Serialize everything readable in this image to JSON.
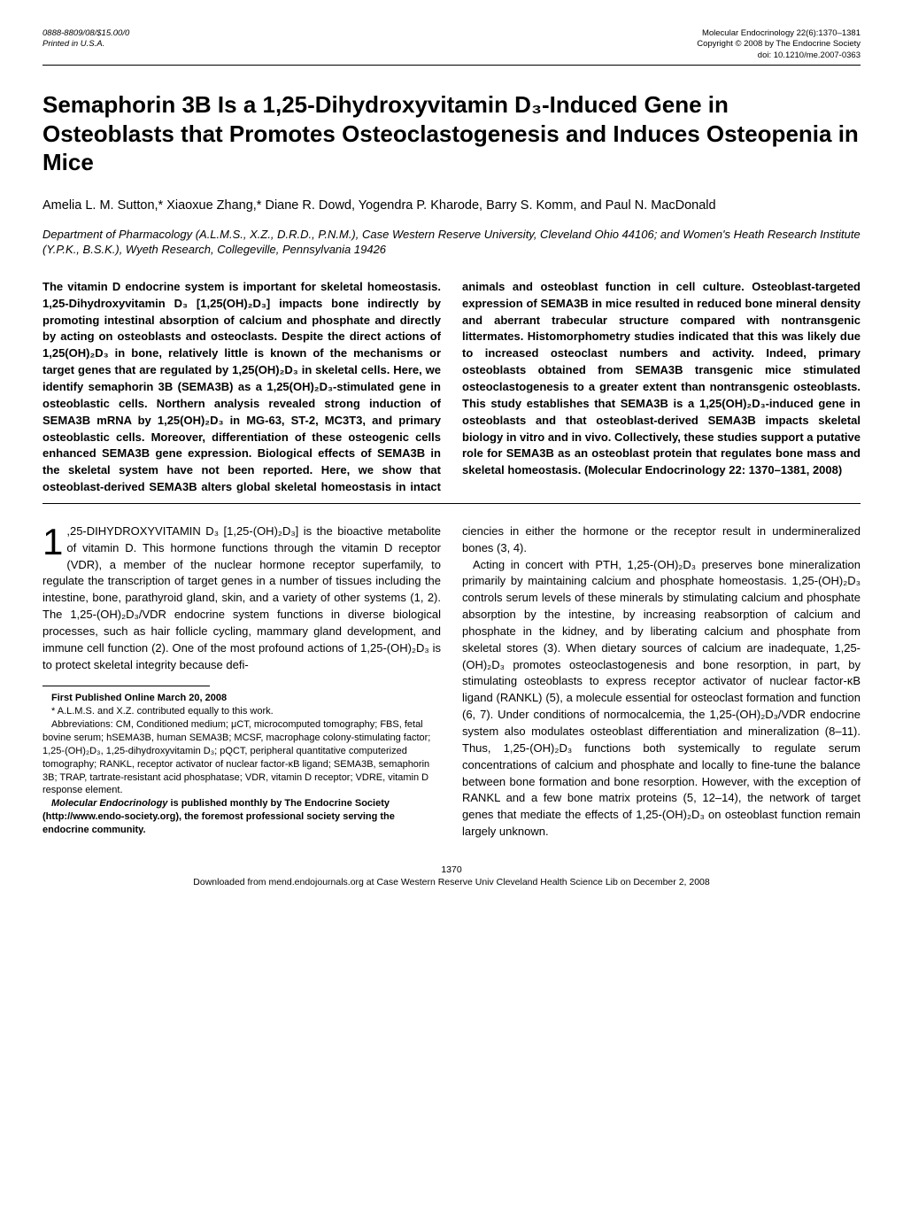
{
  "header": {
    "left_line1": "0888-8809/08/$15.00/0",
    "left_line2": "Printed in U.S.A.",
    "right_line1": "Molecular Endocrinology 22(6):1370–1381",
    "right_line2": "Copyright © 2008 by The Endocrine Society",
    "right_line3": "doi: 10.1210/me.2007-0363"
  },
  "title": "Semaphorin 3B Is a 1,25-Dihydroxyvitamin D₃-Induced Gene in Osteoblasts that Promotes Osteoclastogenesis and Induces Osteopenia in Mice",
  "authors": "Amelia L. M. Sutton,* Xiaoxue Zhang,* Diane R. Dowd, Yogendra P. Kharode, Barry S. Komm, and Paul N. MacDonald",
  "affiliation": "Department of Pharmacology (A.L.M.S., X.Z., D.R.D., P.N.M.), Case Western Reserve University, Cleveland Ohio 44106; and Women's Heath Research Institute (Y.P.K., B.S.K.), Wyeth Research, Collegeville, Pennsylvania 19426",
  "abstract_left": "The vitamin D endocrine system is important for skeletal homeostasis. 1,25-Dihydroxyvitamin D₃ [1,25(OH)₂D₃] impacts bone indirectly by promoting intestinal absorption of calcium and phosphate and directly by acting on osteoblasts and osteoclasts. Despite the direct actions of 1,25(OH)₂D₃ in bone, relatively little is known of the mechanisms or target genes that are regulated by 1,25(OH)₂D₃ in skeletal cells. Here, we identify semaphorin 3B (SEMA3B) as a 1,25(OH)₂D₃-stimulated gene in osteoblastic cells. Northern analysis revealed strong induction of SEMA3B mRNA by 1,25(OH)₂D₃ in MG-63, ST-2, MC3T3, and primary osteoblastic cells. Moreover, differentiation of these osteogenic cells enhanced SEMA3B gene expression. Biological effects of SEMA3B in the skeletal system have not been reported. Here, we show that osteoblast-derived SEMA3B alters",
  "abstract_right": "global skeletal homeostasis in intact animals and osteoblast function in cell culture. Osteoblast-targeted expression of SEMA3B in mice resulted in reduced bone mineral density and aberrant trabecular structure compared with nontransgenic littermates. Histomorphometry studies indicated that this was likely due to increased osteoclast numbers and activity. Indeed, primary osteoblasts obtained from SEMA3B transgenic mice stimulated osteoclastogenesis to a greater extent than nontransgenic osteoblasts. This study establishes that SEMA3B is a 1,25(OH)₂D₃-induced gene in osteoblasts and that osteoblast-derived SEMA3B impacts skeletal biology in vitro and in vivo. Collectively, these studies support a putative role for SEMA3B as an osteoblast protein that regulates bone mass and skeletal homeostasis. (Molecular Endocrinology 22: 1370–1381, 2008)",
  "body": {
    "drop": "1",
    "p1": ",25-DIHYDROXYVITAMIN D₃ [1,25-(OH)₂D₃] is the bioactive metabolite of vitamin D. This hormone functions through the vitamin D receptor (VDR), a member of the nuclear hormone receptor superfamily, to regulate the transcription of target genes in a number of tissues including the intestine, bone, parathyroid gland, skin, and a variety of other systems (1, 2). The 1,25-(OH)₂D₃/VDR endocrine system functions in diverse biological processes, such as hair follicle cycling, mammary gland development, and immune cell function (2). One of the most profound actions of 1,25-(OH)₂D₃ is to protect skeletal integrity because defi-",
    "p2a": "ciencies in either the hormone or the receptor result in undermineralized bones (3, 4).",
    "p2b": "Acting in concert with PTH, 1,25-(OH)₂D₃ preserves bone mineralization primarily by maintaining calcium and phosphate homeostasis. 1,25-(OH)₂D₃ controls serum levels of these minerals by stimulating calcium and phosphate absorption by the intestine, by increasing reabsorption of calcium and phosphate in the kidney, and by liberating calcium and phosphate from skeletal stores (3). When dietary sources of calcium are inadequate, 1,25-(OH)₂D₃ promotes osteoclastogenesis and bone resorption, in part, by stimulating osteoblasts to express receptor activator of nuclear factor-κB ligand (RANKL) (5), a molecule essential for osteoclast formation and function (6, 7). Under conditions of normocalcemia, the 1,25-(OH)₂D₃/VDR endocrine system also modulates osteoblast differentiation and mineralization (8–11). Thus, 1,25-(OH)₂D₃ functions both systemically to regulate serum concentrations of calcium and phosphate and locally to fine-tune the balance between bone formation and bone resorption. However, with the exception of RANKL and a few bone matrix proteins (5, 12–14), the network of target genes that mediate the effects of 1,25-(OH)₂D₃ on osteoblast function remain largely unknown."
  },
  "footnotes": {
    "l1": "First Published Online March 20, 2008",
    "l2": "* A.L.M.S. and X.Z. contributed equally to this work.",
    "l3": "Abbreviations: CM, Conditioned medium; μCT, microcomputed tomography; FBS, fetal bovine serum; hSEMA3B, human SEMA3B; MCSF, macrophage colony-stimulating factor; 1,25-(OH)₂D₃, 1,25-dihydroxyvitamin D₃; pQCT, peripheral quantitative computerized tomography; RANKL, receptor activator of nuclear factor-κB ligand; SEMA3B, semaphorin 3B; TRAP, tartrate-resistant acid phosphatase; VDR, vitamin D receptor; VDRE, vitamin D response element.",
    "l4a": "Molecular Endocrinology",
    "l4b": " is published monthly by The Endocrine Society (http://www.endo-society.org), the foremost professional society serving the endocrine community."
  },
  "bottom": {
    "page": "1370",
    "dl": "Downloaded from mend.endojournals.org at Case Western Reserve Univ Cleveland Health Science Lib on December 2, 2008"
  }
}
